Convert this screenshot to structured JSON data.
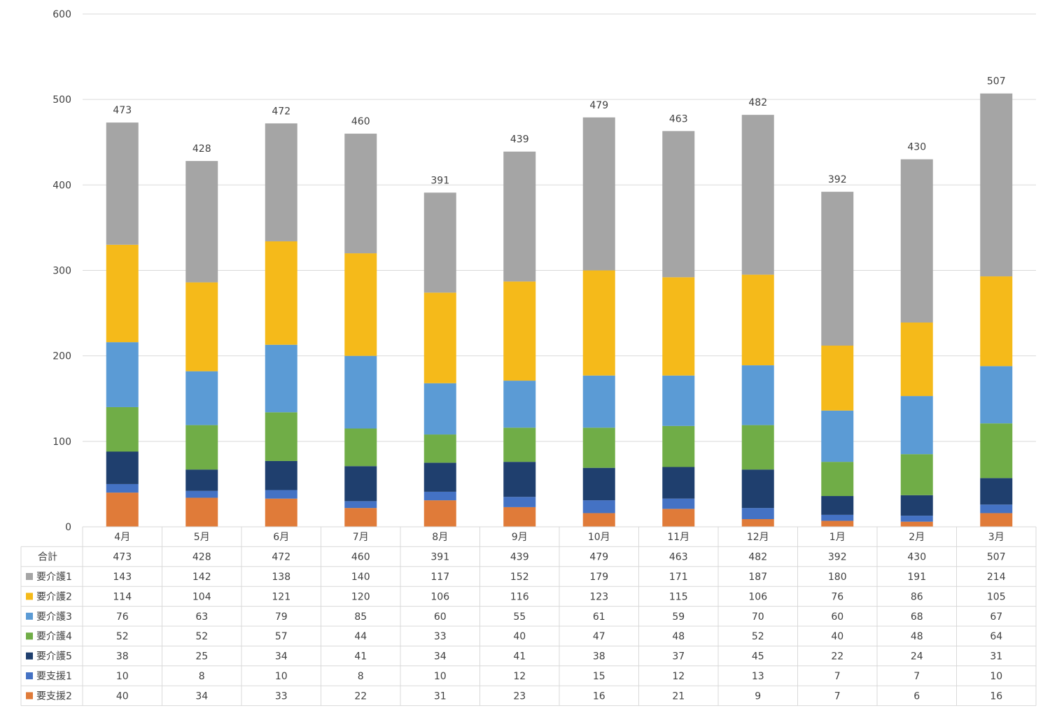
{
  "chart_data": {
    "type": "bar",
    "stacked": true,
    "categories": [
      "4月",
      "5月",
      "6月",
      "7月",
      "8月",
      "9月",
      "10月",
      "11月",
      "12月",
      "1月",
      "2月",
      "3月"
    ],
    "ylim": [
      0,
      600
    ],
    "yticks": [
      0,
      100,
      200,
      300,
      400,
      500,
      600
    ],
    "grid": true,
    "series": [
      {
        "name": "要支援2",
        "color": "#E07B39",
        "values": [
          40,
          34,
          33,
          22,
          31,
          23,
          16,
          21,
          9,
          7,
          6,
          16
        ]
      },
      {
        "name": "要支援1",
        "color": "#4472C4",
        "values": [
          10,
          8,
          10,
          8,
          10,
          12,
          15,
          12,
          13,
          7,
          7,
          10
        ]
      },
      {
        "name": "要介護5",
        "color": "#1F3F6E",
        "values": [
          38,
          25,
          34,
          41,
          34,
          41,
          38,
          37,
          45,
          22,
          24,
          31
        ]
      },
      {
        "name": "要介護4",
        "color": "#70AD47",
        "values": [
          52,
          52,
          57,
          44,
          33,
          40,
          47,
          48,
          52,
          40,
          48,
          64
        ]
      },
      {
        "name": "要介護3",
        "color": "#5B9BD5",
        "values": [
          76,
          63,
          79,
          85,
          60,
          55,
          61,
          59,
          70,
          60,
          68,
          67
        ]
      },
      {
        "name": "要介護2",
        "color": "#F5BA1A",
        "values": [
          114,
          104,
          121,
          120,
          106,
          116,
          123,
          115,
          106,
          76,
          86,
          105
        ]
      },
      {
        "name": "要介護1",
        "color": "#A5A5A5",
        "values": [
          143,
          142,
          138,
          140,
          117,
          152,
          179,
          171,
          187,
          180,
          191,
          214
        ]
      }
    ],
    "totals_label": "合計",
    "totals": [
      473,
      428,
      472,
      460,
      391,
      439,
      479,
      463,
      482,
      392,
      430,
      507
    ],
    "table_row_order": [
      "要介護1",
      "要介護2",
      "要介護3",
      "要介護4",
      "要介護5",
      "要支援1",
      "要支援2"
    ]
  }
}
